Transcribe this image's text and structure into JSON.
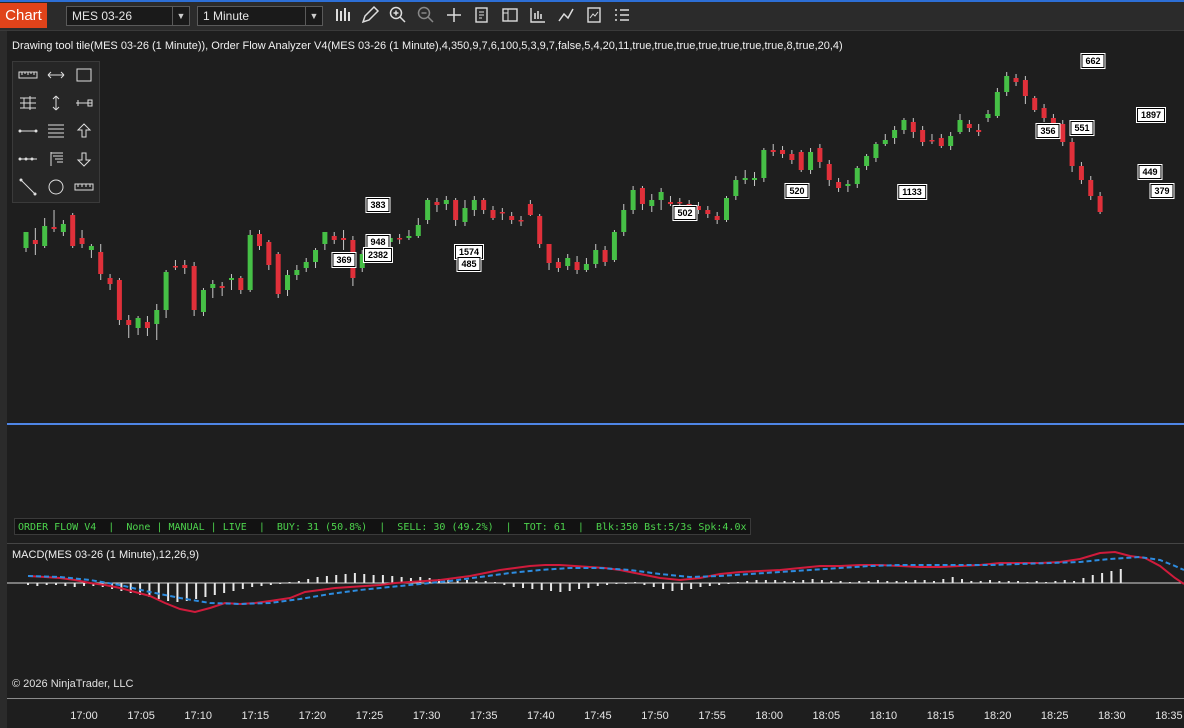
{
  "toolbar": {
    "chart_tab": "Chart",
    "instrument": "MES 03-26",
    "interval": "1 Minute",
    "icons": [
      "bars-type-icon",
      "pencil-draw-icon",
      "zoom-in-icon",
      "zoom-out-icon",
      "crosshair-icon",
      "data-box-icon",
      "chart-trader-icon",
      "strategies-icon",
      "indicators-icon",
      "templates-icon",
      "properties-icon"
    ]
  },
  "indicator_label": "Drawing tool tile(MES 03-26 (1 Minute)), Order Flow Analyzer V4(MES 03-26 (1 Minute),4,350,9,7,6,100,5,3,9,7,false,5,4,20,11,true,true,true,true,true,true,true,8,true,20,4)",
  "drawing_tools": [
    "ruler-icon",
    "arrow-line-icon",
    "rectangle-icon",
    "fibonacci-icon",
    "extension-icon",
    "ray-icon",
    "line-icon",
    "horizontal-lines-icon",
    "arrow-up-icon",
    "polyline-icon",
    "channel-icon",
    "arrow-down-icon",
    "diagonal-line-icon",
    "ellipse-icon",
    "time-ruler-icon"
  ],
  "status_bar": "ORDER FLOW V4  |  None | MANUAL | LIVE  |  BUY: 31 (50.8%)  |  SELL: 30 (49.2%)  |  TOT: 61  |  Blk:350 Bst:5/3s Spk:4.0x",
  "macd_label": "MACD(MES 03-26 (1 Minute),12,26,9)",
  "copyright": "© 2026 NinjaTrader, LLC",
  "colors": {
    "up": "#46c046",
    "down": "#e0303a",
    "macd": "#d01b3c",
    "signal": "#2d8ce0",
    "hline": "#4f86e6",
    "accent": "#e0431a"
  },
  "chart_data": {
    "type": "candlestick",
    "x_ticks": [
      "17:00",
      "17:05",
      "17:10",
      "17:15",
      "17:20",
      "17:25",
      "17:30",
      "17:35",
      "17:40",
      "17:45",
      "17:50",
      "17:55",
      "18:00",
      "18:05",
      "18:10",
      "18:15",
      "18:20",
      "18:25",
      "18:30",
      "18:35"
    ],
    "volume_labels": [
      "383",
      "948",
      "2382",
      "369",
      "1574",
      "485",
      "502",
      "520",
      "1133",
      "356",
      "551",
      "662",
      "1897",
      "449",
      "379"
    ],
    "candles": [
      [
        248,
        232,
        232,
        252
      ],
      [
        240,
        244,
        228,
        255
      ],
      [
        246,
        226,
        218,
        248
      ],
      [
        227,
        229,
        210,
        232
      ],
      [
        232,
        224,
        220,
        236
      ],
      [
        215,
        246,
        213,
        248
      ],
      [
        238,
        244,
        230,
        248
      ],
      [
        250,
        246,
        244,
        258
      ],
      [
        252,
        274,
        244,
        280
      ],
      [
        278,
        284,
        274,
        290
      ],
      [
        280,
        320,
        278,
        325
      ],
      [
        320,
        325,
        315,
        338
      ],
      [
        328,
        318,
        316,
        335
      ],
      [
        322,
        328,
        316,
        336
      ],
      [
        324,
        310,
        304,
        340
      ],
      [
        310,
        272,
        270,
        318
      ],
      [
        266,
        266,
        260,
        270
      ],
      [
        265,
        268,
        260,
        274
      ],
      [
        266,
        310,
        262,
        316
      ],
      [
        312,
        290,
        288,
        316
      ],
      [
        288,
        284,
        280,
        298
      ],
      [
        286,
        288,
        282,
        296
      ],
      [
        280,
        278,
        274,
        290
      ],
      [
        278,
        290,
        276,
        294
      ],
      [
        290,
        235,
        230,
        292
      ],
      [
        234,
        246,
        230,
        250
      ],
      [
        242,
        265,
        240,
        270
      ],
      [
        254,
        294,
        252,
        298
      ],
      [
        290,
        275,
        270,
        296
      ],
      [
        275,
        270,
        265,
        280
      ],
      [
        268,
        262,
        258,
        272
      ],
      [
        262,
        250,
        248,
        268
      ],
      [
        244,
        232,
        232,
        250
      ],
      [
        236,
        240,
        232,
        244
      ],
      [
        238,
        240,
        230,
        250
      ],
      [
        240,
        278,
        236,
        286
      ],
      [
        268,
        254,
        250,
        272
      ],
      [
        250,
        242,
        240,
        256
      ],
      [
        240,
        240,
        235,
        244
      ],
      [
        242,
        238,
        234,
        248
      ],
      [
        238,
        238,
        234,
        244
      ],
      [
        238,
        236,
        230,
        240
      ],
      [
        236,
        225,
        218,
        238
      ],
      [
        220,
        200,
        198,
        224
      ],
      [
        202,
        205,
        198,
        212
      ],
      [
        204,
        200,
        196,
        210
      ],
      [
        200,
        220,
        198,
        226
      ],
      [
        222,
        208,
        200,
        226
      ],
      [
        210,
        200,
        196,
        216
      ],
      [
        200,
        210,
        198,
        214
      ],
      [
        210,
        218,
        206,
        220
      ],
      [
        212,
        212,
        208,
        220
      ],
      [
        216,
        220,
        212,
        224
      ],
      [
        220,
        220,
        216,
        226
      ],
      [
        204,
        215,
        200,
        216
      ],
      [
        216,
        244,
        214,
        248
      ],
      [
        244,
        263,
        244,
        270
      ],
      [
        262,
        268,
        258,
        272
      ],
      [
        266,
        258,
        254,
        270
      ],
      [
        262,
        270,
        256,
        274
      ],
      [
        270,
        264,
        258,
        272
      ],
      [
        264,
        250,
        244,
        268
      ],
      [
        250,
        262,
        246,
        266
      ],
      [
        260,
        232,
        230,
        262
      ],
      [
        232,
        210,
        204,
        236
      ],
      [
        210,
        190,
        186,
        214
      ],
      [
        188,
        204,
        186,
        210
      ],
      [
        206,
        200,
        194,
        212
      ],
      [
        200,
        192,
        188,
        210
      ],
      [
        202,
        204,
        196,
        206
      ],
      [
        202,
        202,
        198,
        206
      ],
      [
        204,
        206,
        200,
        208
      ],
      [
        206,
        210,
        202,
        214
      ],
      [
        210,
        214,
        206,
        218
      ],
      [
        216,
        220,
        212,
        224
      ],
      [
        220,
        198,
        196,
        222
      ],
      [
        196,
        180,
        176,
        200
      ],
      [
        180,
        178,
        170,
        184
      ],
      [
        180,
        178,
        172,
        186
      ],
      [
        178,
        150,
        148,
        182
      ],
      [
        150,
        152,
        144,
        156
      ],
      [
        150,
        154,
        146,
        158
      ],
      [
        154,
        160,
        150,
        164
      ],
      [
        152,
        170,
        150,
        172
      ],
      [
        170,
        152,
        148,
        174
      ],
      [
        148,
        162,
        144,
        168
      ],
      [
        164,
        180,
        160,
        186
      ],
      [
        182,
        188,
        178,
        192
      ],
      [
        186,
        184,
        180,
        192
      ],
      [
        184,
        168,
        166,
        188
      ],
      [
        166,
        156,
        154,
        170
      ],
      [
        158,
        144,
        142,
        162
      ],
      [
        144,
        140,
        134,
        146
      ],
      [
        138,
        130,
        126,
        144
      ],
      [
        130,
        120,
        118,
        134
      ],
      [
        122,
        132,
        118,
        138
      ],
      [
        130,
        142,
        126,
        146
      ],
      [
        140,
        140,
        134,
        144
      ],
      [
        138,
        146,
        134,
        148
      ],
      [
        146,
        136,
        132,
        150
      ],
      [
        132,
        120,
        114,
        134
      ],
      [
        124,
        128,
        120,
        132
      ],
      [
        130,
        132,
        124,
        136
      ],
      [
        118,
        114,
        110,
        122
      ],
      [
        116,
        92,
        88,
        118
      ],
      [
        92,
        76,
        72,
        96
      ],
      [
        78,
        82,
        74,
        86
      ],
      [
        80,
        96,
        76,
        104
      ],
      [
        98,
        110,
        96,
        112
      ],
      [
        108,
        118,
        104,
        122
      ],
      [
        118,
        126,
        114,
        130
      ],
      [
        124,
        142,
        120,
        146
      ],
      [
        142,
        166,
        138,
        172
      ],
      [
        166,
        180,
        162,
        184
      ],
      [
        180,
        196,
        176,
        200
      ],
      [
        196,
        212,
        192,
        214
      ]
    ],
    "macd": [
      [
        28,
        576
      ],
      [
        45,
        577
      ],
      [
        60,
        578
      ],
      [
        75,
        580
      ],
      [
        90,
        583
      ],
      [
        105,
        585
      ],
      [
        120,
        588
      ],
      [
        135,
        592
      ],
      [
        150,
        596
      ],
      [
        165,
        603
      ],
      [
        180,
        609
      ],
      [
        195,
        612
      ],
      [
        210,
        608
      ],
      [
        225,
        603
      ],
      [
        240,
        604
      ],
      [
        255,
        603
      ],
      [
        270,
        601
      ],
      [
        290,
        598
      ],
      [
        305,
        592
      ],
      [
        320,
        590
      ],
      [
        335,
        588
      ],
      [
        350,
        587
      ],
      [
        365,
        586
      ],
      [
        380,
        585
      ],
      [
        395,
        583
      ],
      [
        410,
        582
      ],
      [
        425,
        581
      ],
      [
        440,
        580
      ],
      [
        455,
        578
      ],
      [
        470,
        576
      ],
      [
        485,
        573
      ],
      [
        500,
        570
      ],
      [
        515,
        568
      ],
      [
        530,
        566
      ],
      [
        545,
        565
      ],
      [
        560,
        565
      ],
      [
        575,
        566
      ],
      [
        590,
        567
      ],
      [
        605,
        568
      ],
      [
        620,
        570
      ],
      [
        640,
        574
      ],
      [
        660,
        578
      ],
      [
        680,
        580
      ],
      [
        700,
        578
      ],
      [
        720,
        574
      ],
      [
        740,
        572
      ],
      [
        760,
        571
      ],
      [
        780,
        570
      ],
      [
        800,
        568
      ],
      [
        820,
        566
      ],
      [
        840,
        566
      ],
      [
        860,
        565
      ],
      [
        880,
        565
      ],
      [
        900,
        566
      ],
      [
        920,
        567
      ],
      [
        940,
        567
      ],
      [
        960,
        566
      ],
      [
        980,
        565
      ],
      [
        1000,
        563
      ],
      [
        1020,
        563
      ],
      [
        1040,
        563
      ],
      [
        1060,
        562
      ],
      [
        1080,
        559
      ],
      [
        1100,
        553
      ],
      [
        1115,
        552
      ],
      [
        1130,
        556
      ],
      [
        1145,
        558
      ],
      [
        1160,
        566
      ],
      [
        1175,
        578
      ],
      [
        1184,
        584
      ]
    ],
    "signal": [
      [
        28,
        576
      ],
      [
        60,
        577
      ],
      [
        90,
        580
      ],
      [
        120,
        585
      ],
      [
        150,
        592
      ],
      [
        180,
        598
      ],
      [
        210,
        603
      ],
      [
        240,
        604
      ],
      [
        270,
        603
      ],
      [
        300,
        599
      ],
      [
        330,
        594
      ],
      [
        360,
        590
      ],
      [
        390,
        587
      ],
      [
        420,
        584
      ],
      [
        450,
        581
      ],
      [
        480,
        577
      ],
      [
        510,
        573
      ],
      [
        540,
        570
      ],
      [
        570,
        568
      ],
      [
        600,
        568
      ],
      [
        630,
        570
      ],
      [
        660,
        574
      ],
      [
        690,
        577
      ],
      [
        720,
        576
      ],
      [
        750,
        574
      ],
      [
        780,
        572
      ],
      [
        810,
        570
      ],
      [
        840,
        568
      ],
      [
        870,
        566
      ],
      [
        900,
        565
      ],
      [
        930,
        565
      ],
      [
        960,
        565
      ],
      [
        990,
        565
      ],
      [
        1020,
        564
      ],
      [
        1050,
        563
      ],
      [
        1080,
        562
      ],
      [
        1110,
        559
      ],
      [
        1140,
        557
      ],
      [
        1160,
        560
      ],
      [
        1175,
        566
      ],
      [
        1184,
        570
      ]
    ],
    "histogram": [
      2,
      3,
      2,
      2,
      3,
      4,
      3,
      3,
      4,
      6,
      8,
      10,
      12,
      14,
      16,
      18,
      19,
      18,
      16,
      14,
      12,
      10,
      8,
      6,
      4,
      3,
      2,
      1,
      -1,
      -2,
      -4,
      -6,
      -7,
      -8,
      -9,
      -10,
      -9,
      -8,
      -8,
      -7,
      -6,
      -5,
      -6,
      -5,
      -4,
      -4,
      -3,
      -3,
      -2,
      -2,
      -1,
      2,
      4,
      5,
      6,
      7,
      8,
      9,
      8,
      6,
      5,
      3,
      2,
      1,
      1,
      -1,
      2,
      4,
      6,
      8,
      7,
      6,
      4,
      3,
      2,
      1,
      -1,
      -2,
      -3,
      -3,
      -3,
      -2,
      -2,
      -3,
      -4,
      -3,
      -2,
      -2,
      -1,
      -2,
      -2,
      -3,
      -2,
      -2,
      -2,
      -3,
      -3,
      -2,
      -4,
      -6,
      -4,
      -2,
      -2,
      -3,
      -2,
      -2,
      -2,
      -1,
      -2,
      -1,
      -2,
      -3,
      -2,
      -5,
      -8,
      -10,
      -12,
      -14
    ]
  }
}
